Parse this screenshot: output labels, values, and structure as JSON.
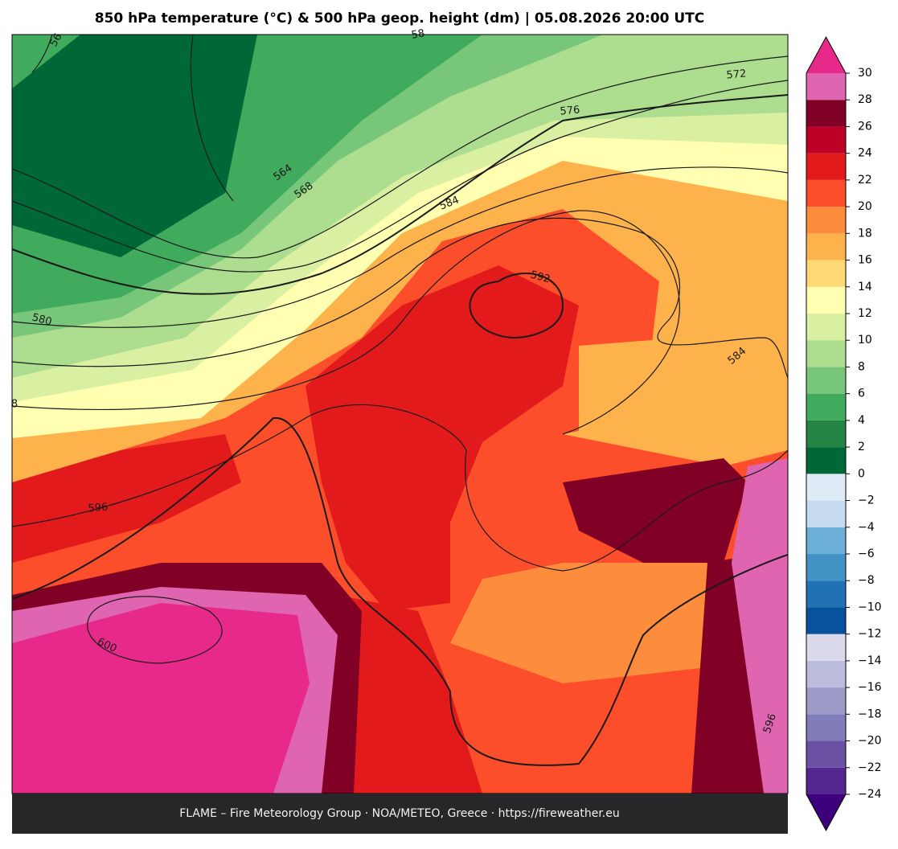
{
  "title": "850 hPa temperature (°C) & 500 hPa geop. height (dm)  |  05.08.2026 20:00 UTC",
  "footer": "FLAME – Fire Meteorology Group · NOA/METEO, Greece · https://fireweather.eu",
  "colorbar": {
    "ticks": [
      {
        "value": -24,
        "label": "−24"
      },
      {
        "value": -22,
        "label": "−22"
      },
      {
        "value": -20,
        "label": "−20"
      },
      {
        "value": -18,
        "label": "−18"
      },
      {
        "value": -16,
        "label": "−16"
      },
      {
        "value": -14,
        "label": "−14"
      },
      {
        "value": -12,
        "label": "−12"
      },
      {
        "value": -10,
        "label": "−10"
      },
      {
        "value": -8,
        "label": "−8"
      },
      {
        "value": -6,
        "label": "−6"
      },
      {
        "value": -4,
        "label": "−4"
      },
      {
        "value": -2,
        "label": "−2"
      },
      0,
      2,
      4,
      6,
      8,
      10,
      12,
      14,
      16,
      18,
      20,
      22,
      24,
      26,
      28,
      30
    ],
    "colors": [
      "#54278f",
      "#6a51a3",
      "#807dba",
      "#9e9ac8",
      "#bcbddc",
      "#dadaeb",
      "#08519c",
      "#2171b5",
      "#4292c6",
      "#6baed6",
      "#c6dbef",
      "#deebf7",
      "#006837",
      "#238443",
      "#41ab5d",
      "#78c679",
      "#addd8e",
      "#d9f0a3",
      "#ffffb2",
      "#fed976",
      "#feb24c",
      "#fd8d3c",
      "#fc4e2a",
      "#e31a1c",
      "#bd0026",
      "#800026",
      "#df65b0"
    ],
    "under_color": "#3f007d",
    "over_color": "#e7298a"
  },
  "contour_labels": [
    "56",
    "58",
    "564",
    "568",
    "572",
    "576",
    "580",
    "584",
    "584",
    "592",
    "596",
    "596",
    "600",
    "8"
  ]
}
